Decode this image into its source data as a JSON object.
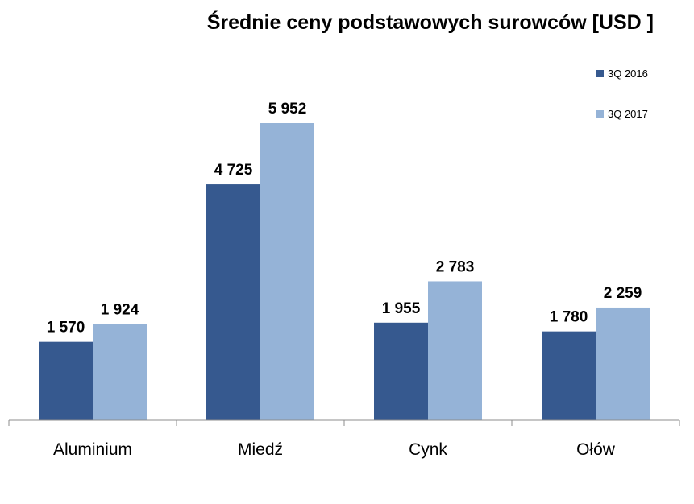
{
  "chart_data": {
    "type": "bar",
    "title": "Średnie ceny podstawowych surowców [USD ]",
    "categories": [
      "Aluminium",
      "Miedź",
      "Cynk",
      "Ołów"
    ],
    "series": [
      {
        "name": "3Q 2016",
        "values": [
          1570,
          4725,
          1955,
          1780
        ],
        "labels": [
          "1 570",
          "4 725",
          "1 955",
          "1 780"
        ]
      },
      {
        "name": "3Q 2017",
        "values": [
          1924,
          5952,
          2783,
          2259
        ],
        "labels": [
          "1 924",
          "5 952",
          "2 783",
          "2 259"
        ]
      }
    ],
    "ylim": [
      0,
      6000
    ],
    "grid": false,
    "legend_position": "right",
    "colors": [
      "#36598f",
      "#95b3d7"
    ]
  }
}
